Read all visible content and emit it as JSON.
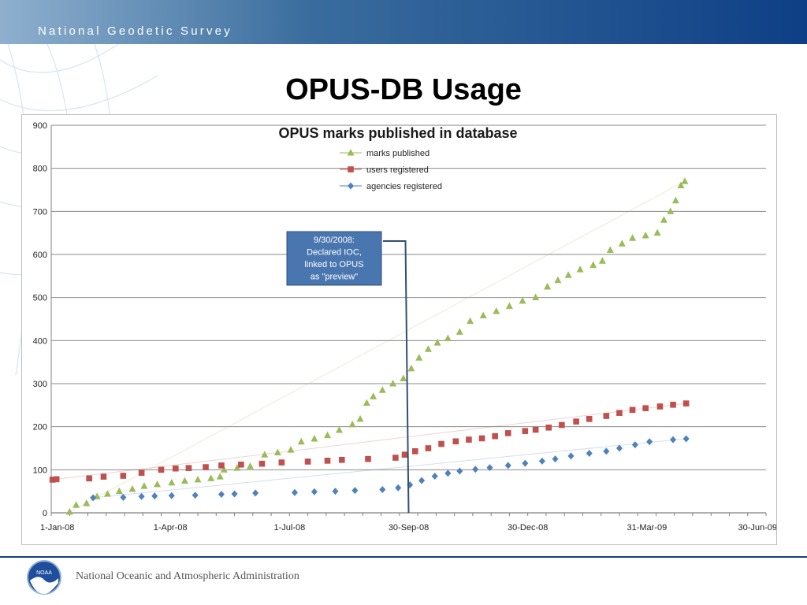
{
  "header": {
    "org": "National Geodetic Survey"
  },
  "slide": {
    "title": "OPUS-DB Usage"
  },
  "footer": {
    "agency": "National Oceanic and Atmospheric Administration",
    "logo_text": "NOAA"
  },
  "colors": {
    "marks": "#9bbb59",
    "users": "#c0504d",
    "agencies": "#4f81bd",
    "callout": "#4a76b0",
    "banner": "#0e3f86"
  },
  "chart_data": {
    "type": "scatter",
    "title": "OPUS marks published in database",
    "xlabel": "",
    "ylabel": "",
    "ylim": [
      0,
      900
    ],
    "xlim": [
      "2008-01-01",
      "2009-06-30"
    ],
    "x_ticks": [
      "1-Jan-08",
      "1-Apr-08",
      "1-Jul-08",
      "30-Sep-08",
      "30-Dec-08",
      "31-Mar-09",
      "30-Jun-09"
    ],
    "y_ticks": [
      0,
      100,
      200,
      300,
      400,
      500,
      600,
      700,
      800,
      900
    ],
    "grid": true,
    "legend_position": "top-center",
    "callout": {
      "text": [
        "9/30/2008:",
        "Declared IOC,",
        "linked to OPUS",
        "as \"preview\""
      ],
      "x": "2008-09-30"
    },
    "series": [
      {
        "name": "marks published",
        "marker": "triangle",
        "color": "#9bbb59",
        "points": [
          [
            "2008-01-15",
            2
          ],
          [
            "2008-01-20",
            18
          ],
          [
            "2008-01-28",
            22
          ],
          [
            "2008-02-05",
            38
          ],
          [
            "2008-02-13",
            44
          ],
          [
            "2008-02-22",
            50
          ],
          [
            "2008-03-03",
            55
          ],
          [
            "2008-03-12",
            62
          ],
          [
            "2008-03-22",
            66
          ],
          [
            "2008-04-02",
            70
          ],
          [
            "2008-04-12",
            74
          ],
          [
            "2008-04-22",
            77
          ],
          [
            "2008-05-02",
            80
          ],
          [
            "2008-05-09",
            84
          ],
          [
            "2008-05-12",
            100
          ],
          [
            "2008-05-22",
            104
          ],
          [
            "2008-06-01",
            108
          ],
          [
            "2008-06-12",
            135
          ],
          [
            "2008-06-22",
            140
          ],
          [
            "2008-07-02",
            146
          ],
          [
            "2008-07-10",
            165
          ],
          [
            "2008-07-20",
            172
          ],
          [
            "2008-07-30",
            180
          ],
          [
            "2008-08-08",
            192
          ],
          [
            "2008-08-18",
            205
          ],
          [
            "2008-08-24",
            218
          ],
          [
            "2008-08-29",
            255
          ],
          [
            "2008-09-03",
            270
          ],
          [
            "2008-09-10",
            285
          ],
          [
            "2008-09-18",
            300
          ],
          [
            "2008-09-26",
            312
          ],
          [
            "2008-10-02",
            335
          ],
          [
            "2008-10-08",
            360
          ],
          [
            "2008-10-15",
            380
          ],
          [
            "2008-10-22",
            395
          ],
          [
            "2008-10-30",
            405
          ],
          [
            "2008-11-08",
            420
          ],
          [
            "2008-11-16",
            445
          ],
          [
            "2008-11-26",
            458
          ],
          [
            "2008-12-06",
            468
          ],
          [
            "2008-12-16",
            480
          ],
          [
            "2008-12-26",
            492
          ],
          [
            "2009-01-05",
            500
          ],
          [
            "2009-01-14",
            525
          ],
          [
            "2009-01-22",
            540
          ],
          [
            "2009-01-30",
            552
          ],
          [
            "2009-02-08",
            565
          ],
          [
            "2009-02-18",
            575
          ],
          [
            "2009-02-25",
            585
          ],
          [
            "2009-03-03",
            610
          ],
          [
            "2009-03-12",
            625
          ],
          [
            "2009-03-20",
            638
          ],
          [
            "2009-03-30",
            644
          ],
          [
            "2009-04-08",
            650
          ],
          [
            "2009-04-13",
            680
          ],
          [
            "2009-04-18",
            700
          ],
          [
            "2009-04-22",
            725
          ],
          [
            "2009-04-26",
            760
          ],
          [
            "2009-04-29",
            770
          ]
        ]
      },
      {
        "name": "users registered",
        "marker": "square",
        "color": "#c0504d",
        "points": [
          [
            "2008-01-02",
            77
          ],
          [
            "2008-01-05",
            78
          ],
          [
            "2008-01-30",
            80
          ],
          [
            "2008-02-10",
            84
          ],
          [
            "2008-02-25",
            86
          ],
          [
            "2008-03-10",
            93
          ],
          [
            "2008-03-25",
            100
          ],
          [
            "2008-04-05",
            103
          ],
          [
            "2008-04-15",
            104
          ],
          [
            "2008-04-28",
            106
          ],
          [
            "2008-05-10",
            110
          ],
          [
            "2008-05-25",
            112
          ],
          [
            "2008-06-10",
            114
          ],
          [
            "2008-06-25",
            117
          ],
          [
            "2008-07-15",
            119
          ],
          [
            "2008-07-30",
            121
          ],
          [
            "2008-08-10",
            123
          ],
          [
            "2008-08-30",
            125
          ],
          [
            "2008-09-20",
            128
          ],
          [
            "2008-09-27",
            135
          ],
          [
            "2008-10-05",
            143
          ],
          [
            "2008-10-15",
            150
          ],
          [
            "2008-10-25",
            160
          ],
          [
            "2008-11-05",
            166
          ],
          [
            "2008-11-15",
            170
          ],
          [
            "2008-11-25",
            173
          ],
          [
            "2008-12-05",
            178
          ],
          [
            "2008-12-15",
            185
          ],
          [
            "2008-12-28",
            190
          ],
          [
            "2009-01-05",
            193
          ],
          [
            "2009-01-15",
            198
          ],
          [
            "2009-01-25",
            204
          ],
          [
            "2009-02-05",
            212
          ],
          [
            "2009-02-15",
            218
          ],
          [
            "2009-02-28",
            225
          ],
          [
            "2009-03-10",
            232
          ],
          [
            "2009-03-20",
            239
          ],
          [
            "2009-03-30",
            243
          ],
          [
            "2009-04-10",
            247
          ],
          [
            "2009-04-20",
            251
          ],
          [
            "2009-04-30",
            254
          ]
        ]
      },
      {
        "name": "agencies registered",
        "marker": "diamond",
        "color": "#4f81bd",
        "points": [
          [
            "2008-02-02",
            35
          ],
          [
            "2008-02-25",
            36
          ],
          [
            "2008-03-10",
            38
          ],
          [
            "2008-03-20",
            39
          ],
          [
            "2008-04-02",
            40
          ],
          [
            "2008-04-20",
            41
          ],
          [
            "2008-05-10",
            43
          ],
          [
            "2008-05-20",
            44
          ],
          [
            "2008-06-05",
            46
          ],
          [
            "2008-07-05",
            47
          ],
          [
            "2008-07-20",
            49
          ],
          [
            "2008-08-05",
            50
          ],
          [
            "2008-08-20",
            52
          ],
          [
            "2008-09-10",
            54
          ],
          [
            "2008-09-22",
            58
          ],
          [
            "2008-10-01",
            65
          ],
          [
            "2008-10-10",
            75
          ],
          [
            "2008-10-20",
            85
          ],
          [
            "2008-10-30",
            92
          ],
          [
            "2008-11-08",
            97
          ],
          [
            "2008-11-20",
            101
          ],
          [
            "2008-12-01",
            105
          ],
          [
            "2008-12-15",
            110
          ],
          [
            "2008-12-28",
            115
          ],
          [
            "2009-01-10",
            120
          ],
          [
            "2009-01-20",
            125
          ],
          [
            "2009-02-01",
            132
          ],
          [
            "2009-02-15",
            138
          ],
          [
            "2009-02-28",
            143
          ],
          [
            "2009-03-10",
            150
          ],
          [
            "2009-03-22",
            158
          ],
          [
            "2009-04-02",
            165
          ],
          [
            "2009-04-20",
            170
          ],
          [
            "2009-04-30",
            172
          ]
        ]
      }
    ]
  }
}
